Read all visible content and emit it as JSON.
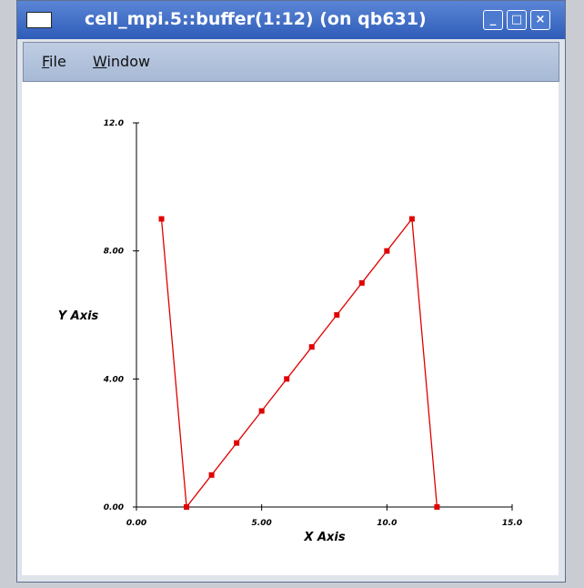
{
  "window": {
    "title": "cell_mpi.5::buffer(1:12) (on qb631)",
    "menu": [
      "File",
      "Window"
    ]
  },
  "chart_data": {
    "type": "line",
    "x_label": "X Axis",
    "y_label": "Y Axis",
    "x": [
      1,
      2,
      3,
      4,
      5,
      6,
      7,
      8,
      9,
      10,
      11,
      12
    ],
    "series": [
      {
        "color": "#e00000",
        "values": [
          9,
          0,
          1,
          2,
          3,
          4,
          5,
          6,
          7,
          8,
          9,
          0
        ]
      }
    ],
    "xlim": [
      0,
      15
    ],
    "ylim": [
      0,
      12
    ],
    "xticks": [
      {
        "value": 0,
        "label": "0.00"
      },
      {
        "value": 5,
        "label": "5.00"
      },
      {
        "value": 10,
        "label": "10.0"
      },
      {
        "value": 15,
        "label": "15.0"
      }
    ],
    "yticks": [
      {
        "value": 0,
        "label": "0.00"
      },
      {
        "value": 4,
        "label": "4.00"
      },
      {
        "value": 8,
        "label": "8.00"
      },
      {
        "value": 12,
        "label": "12.0"
      }
    ],
    "grid": false
  }
}
